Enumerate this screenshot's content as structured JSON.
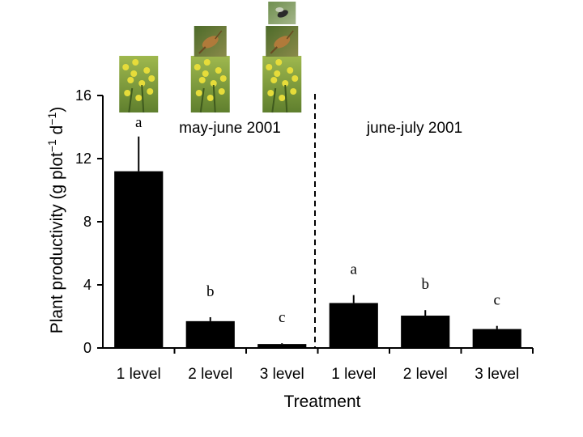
{
  "chart_data": {
    "type": "bar",
    "xlabel": "Treatment",
    "ylabel": "Plant productivity (g plot",
    "ylabel_sup1": "−1",
    "ylabel_mid": " d",
    "ylabel_sup2": "−1",
    "ylabel_end": ")",
    "ylim": [
      0,
      16
    ],
    "yticks": [
      "0",
      "4",
      "8",
      "12",
      "16"
    ],
    "categories": [
      "1 level",
      "2 level",
      "3 level",
      "1 level",
      "2 level",
      "3 level"
    ],
    "values": [
      11.2,
      1.7,
      0.25,
      2.85,
      2.05,
      1.2
    ],
    "errors": [
      2.2,
      0.25,
      0.05,
      0.5,
      0.35,
      0.2
    ],
    "significance": [
      "a",
      "b",
      "c",
      "a",
      "b",
      "c"
    ],
    "periods": [
      "may-june 2001",
      "june-july 2001"
    ],
    "colors": {
      "bar": "#000000",
      "axis": "#000000",
      "photo_plant": "#7a9a3a",
      "photo_flower": "#e6dc3a"
    },
    "photo_icons": [
      "plant-photo-icon",
      "grasshopper-photo-icon",
      "fly-photo-icon"
    ]
  }
}
